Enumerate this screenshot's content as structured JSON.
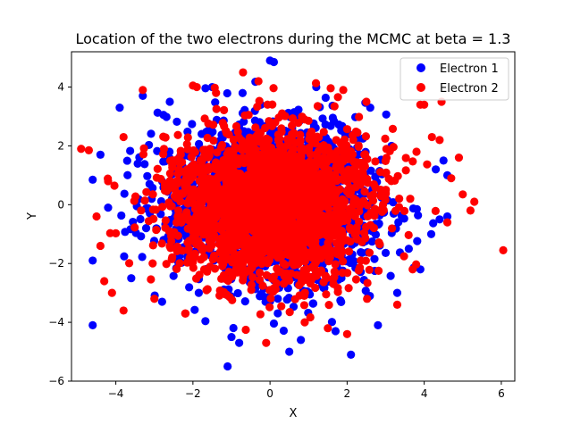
{
  "chart_data": {
    "type": "scatter",
    "title": "Location of the two electrons during the MCMC at beta = 1.3",
    "xlabel": "X",
    "ylabel": "Y",
    "xlim": [
      -5.15,
      6.35
    ],
    "ylim": [
      -6,
      5.2
    ],
    "xticks": [
      -4,
      -2,
      0,
      2,
      4,
      6
    ],
    "yticks": [
      -6,
      -4,
      -2,
      0,
      2,
      4
    ],
    "x_tick_labels": [
      "−4",
      "−2",
      "0",
      "2",
      "4",
      "6"
    ],
    "y_tick_labels": [
      "−6",
      "−4",
      "−2",
      "0",
      "2",
      "4"
    ],
    "grid": false,
    "legend_position": "top-right",
    "series": [
      {
        "name": "Electron 1",
        "color": "#0000ff",
        "core": {
          "center": [
            0,
            0
          ],
          "spread_x": 1.3,
          "spread_y": 1.3,
          "count": 2200
        },
        "points": [
          [
            0,
            4.9
          ],
          [
            0.1,
            4.85
          ],
          [
            -1.1,
            -5.5
          ],
          [
            2.1,
            -5.1
          ],
          [
            -4.6,
            -4.1
          ],
          [
            -4.6,
            -1.9
          ],
          [
            -4.6,
            0.85
          ],
          [
            4.6,
            1.0
          ],
          [
            4.3,
            1.2
          ],
          [
            -3.9,
            3.3
          ],
          [
            -4.4,
            1.7
          ],
          [
            3.9,
            -2.2
          ],
          [
            -3.3,
            3.7
          ],
          [
            -2.6,
            3.5
          ],
          [
            2.6,
            3.3
          ],
          [
            4.4,
            -0.5
          ],
          [
            4.6,
            -0.4
          ],
          [
            0.8,
            -4.6
          ],
          [
            0.5,
            -5.0
          ],
          [
            -0.8,
            -4.7
          ],
          [
            -1.0,
            -4.5
          ],
          [
            3.6,
            -1.5
          ],
          [
            -4.2,
            -0.1
          ],
          [
            4.5,
            1.5
          ],
          [
            -3.6,
            -2.5
          ],
          [
            3.3,
            -3.0
          ],
          [
            -2.8,
            -3.3
          ],
          [
            1.2,
            4.0
          ],
          [
            -1.5,
            4.0
          ],
          [
            2.8,
            -4.1
          ],
          [
            1.7,
            -4.3
          ]
        ]
      },
      {
        "name": "Electron 2",
        "color": "#ff0000",
        "core": {
          "center": [
            0,
            0
          ],
          "spread_x": 1.3,
          "spread_y": 1.3,
          "count": 2200
        },
        "points": [
          [
            6.05,
            -1.55
          ],
          [
            -4.9,
            1.9
          ],
          [
            -4.7,
            1.85
          ],
          [
            -3.8,
            -3.6
          ],
          [
            -4.3,
            -2.6
          ],
          [
            -4.1,
            -3.0
          ],
          [
            -4.4,
            -1.4
          ],
          [
            4.45,
            3.5
          ],
          [
            4.9,
            1.6
          ],
          [
            5.3,
            0.1
          ],
          [
            5.2,
            -0.2
          ],
          [
            5.0,
            0.35
          ],
          [
            4.0,
            3.4
          ],
          [
            3.9,
            3.4
          ],
          [
            -2.0,
            4.05
          ],
          [
            -1.9,
            4.0
          ],
          [
            -0.7,
            4.5
          ],
          [
            -0.3,
            4.2
          ],
          [
            1.9,
            3.9
          ],
          [
            -3.3,
            3.9
          ],
          [
            2.0,
            -4.4
          ],
          [
            -0.1,
            -4.7
          ],
          [
            4.2,
            2.3
          ],
          [
            4.4,
            2.2
          ],
          [
            -4.2,
            0.8
          ],
          [
            -4.5,
            -0.4
          ],
          [
            4.7,
            0.9
          ],
          [
            4.6,
            -0.6
          ],
          [
            3.3,
            -3.4
          ],
          [
            -3.0,
            -3.2
          ],
          [
            1.5,
            -4.2
          ],
          [
            -2.2,
            -3.7
          ],
          [
            2.5,
            3.5
          ],
          [
            -1.4,
            3.8
          ],
          [
            0.9,
            -4.0
          ],
          [
            3.8,
            1.8
          ],
          [
            -3.8,
            2.3
          ],
          [
            3.7,
            -2.2
          ]
        ]
      }
    ]
  }
}
